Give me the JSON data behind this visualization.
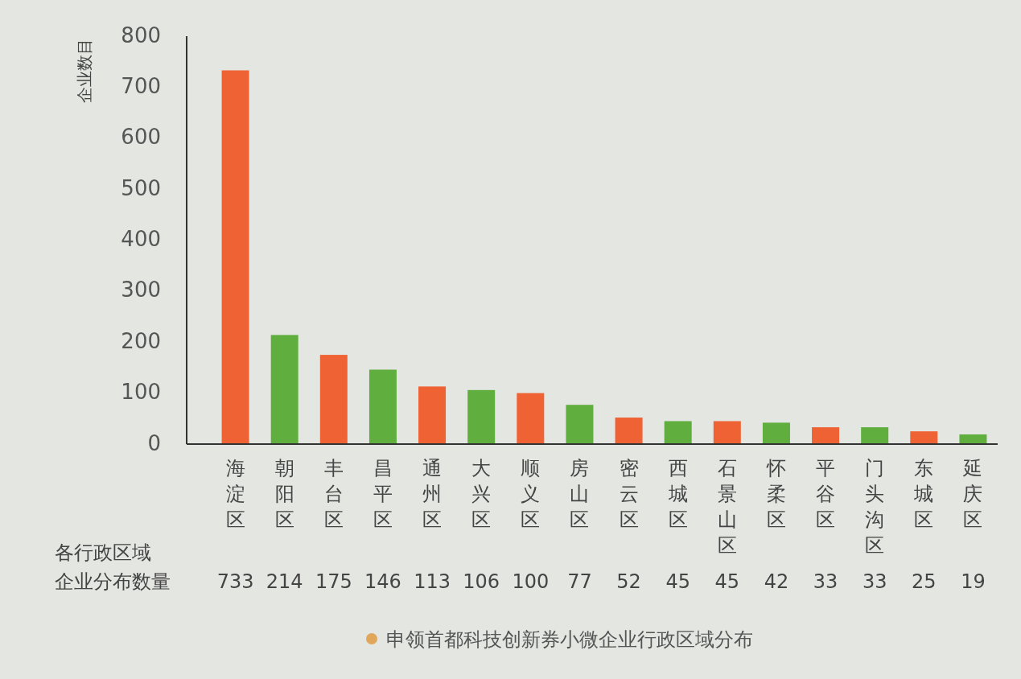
{
  "chart_data": {
    "type": "bar",
    "ylabel": "企业数目",
    "categories": [
      "海淀区",
      "朝阳区",
      "丰台区",
      "昌平区",
      "通州区",
      "大兴区",
      "顺义区",
      "房山区",
      "密云区",
      "西城区",
      "石景山区",
      "怀柔区",
      "平谷区",
      "门头沟区",
      "东城区",
      "延庆区"
    ],
    "values": [
      733,
      214,
      175,
      146,
      113,
      106,
      100,
      77,
      52,
      45,
      45,
      42,
      33,
      33,
      25,
      19
    ],
    "colors": [
      "#ef6234",
      "#5fae3e",
      "#ef6234",
      "#5fae3e",
      "#ef6234",
      "#5fae3e",
      "#ef6234",
      "#5fae3e",
      "#ef6234",
      "#5fae3e",
      "#ef6234",
      "#5fae3e",
      "#ef6234",
      "#5fae3e",
      "#ef6234",
      "#5fae3e"
    ],
    "ylim": [
      0,
      800
    ],
    "yticks": [
      0,
      100,
      200,
      300,
      400,
      500,
      600,
      700,
      800
    ],
    "data_labels": true,
    "grid": false,
    "annotations": [
      "各行政区域",
      "企业分布数量",
      "申领首都科技创新券小微企业行政区域分布"
    ]
  }
}
